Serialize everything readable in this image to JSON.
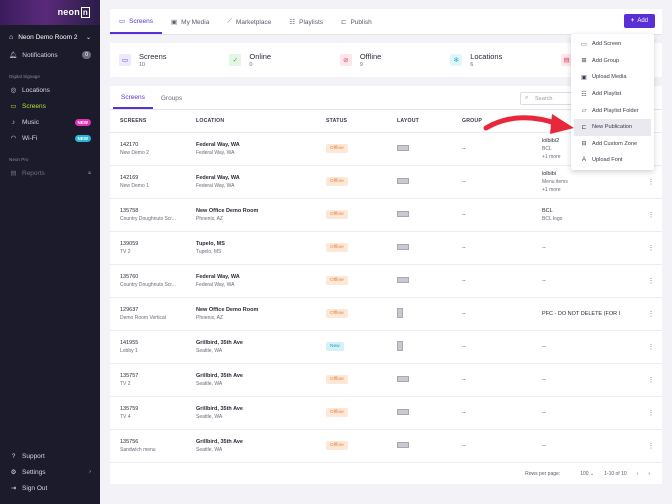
{
  "sidebar": {
    "logo": "neon",
    "logo_box": "n",
    "account": "Neon Demo Room 2",
    "notifications": {
      "label": "Notifications",
      "count": "0"
    },
    "section_signage": "Digital Signage",
    "items": [
      {
        "label": "Locations",
        "icon": "pin-icon",
        "active": false
      },
      {
        "label": "Screens",
        "icon": "monitor-icon",
        "active": true
      },
      {
        "label": "Music",
        "icon": "music-icon",
        "badge": "NEW"
      },
      {
        "label": "Wi-Fi",
        "icon": "wifi-icon",
        "badge": "NEW"
      }
    ],
    "section_pro": "Neon Pro",
    "reports": "Reports",
    "bottom": [
      {
        "label": "Support"
      },
      {
        "label": "Settings"
      },
      {
        "label": "Sign Out"
      }
    ]
  },
  "tabs": [
    {
      "label": "Screens",
      "active": true
    },
    {
      "label": "My Media"
    },
    {
      "label": "Marketplace"
    },
    {
      "label": "Playlists"
    },
    {
      "label": "Publish"
    }
  ],
  "add_button": "Add",
  "stats": [
    {
      "name": "Screens",
      "num": "10",
      "color": "#5b2fd6",
      "bg": "#efe9fc"
    },
    {
      "name": "Online",
      "num": "0",
      "color": "#34b54a",
      "bg": "#e5f6e6"
    },
    {
      "name": "Offline",
      "num": "9",
      "color": "#e23b5a",
      "bg": "#fce6ea"
    },
    {
      "name": "Locations",
      "num": "6",
      "color": "#25b6d9",
      "bg": "#e2f5fb"
    },
    {
      "name": "",
      "num": "",
      "color": "#e23b5a",
      "bg": "#fce6ea"
    }
  ],
  "subtabs": [
    "Screens",
    "Groups"
  ],
  "search_placeholder": "Search",
  "columns": [
    "SCREENS",
    "LOCATION",
    "STATUS",
    "LAYOUT",
    "GROUP",
    ""
  ],
  "rows": [
    {
      "id": "142170",
      "name": "New Demo 2",
      "loc": "Federal Way, WA",
      "city": "Federal Way, WA",
      "status": "Offline",
      "layout": "landscape",
      "group": "--",
      "playlist": [
        "lolbibi2",
        "BCL"
      ],
      "more": "+1 more"
    },
    {
      "id": "142169",
      "name": "New Demo 1",
      "loc": "Federal Way, WA",
      "city": "Federal Way, WA",
      "status": "Offline",
      "layout": "landscape",
      "group": "--",
      "playlist": [
        "lolbibi",
        "Menu items"
      ],
      "more": "+1 more"
    },
    {
      "id": "135758",
      "name": "Country Doughnuts Scr...",
      "loc": "New Office Demo Room",
      "city": "Phoenix, AZ",
      "status": "Offline",
      "layout": "landscape",
      "group": "--",
      "playlist": [
        "BCL",
        "BCL logo"
      ],
      "more": ""
    },
    {
      "id": "139059",
      "name": "TV 2",
      "loc": "Tupelo, MS",
      "city": "Tupelo, MS",
      "status": "Offline",
      "layout": "landscape",
      "group": "--",
      "playlist": [
        "--"
      ],
      "more": ""
    },
    {
      "id": "135760",
      "name": "Country Doughnuts Scr...",
      "loc": "Federal Way, WA",
      "city": "Federal Way, WA",
      "status": "Offline",
      "layout": "landscape",
      "group": "--",
      "playlist": [
        "--"
      ],
      "more": ""
    },
    {
      "id": "129637",
      "name": "Demo Room Vertical",
      "loc": "New Office Demo Room",
      "city": "Phoenix, AZ",
      "status": "Offline",
      "layout": "portrait",
      "group": "--",
      "playlist": [
        "PFC - DO NOT DELETE (FOR I"
      ],
      "more": ""
    },
    {
      "id": "141955",
      "name": "Lobby 1",
      "loc": "Grillbird, 35th Ave",
      "city": "Seattle, WA",
      "status": "New",
      "layout": "portrait",
      "group": "--",
      "playlist": [
        "--"
      ],
      "more": ""
    },
    {
      "id": "135757",
      "name": "TV 2",
      "loc": "Grillbird, 35th Ave",
      "city": "Seattle, WA",
      "status": "Offline",
      "layout": "landscape",
      "group": "--",
      "playlist": [
        "--"
      ],
      "more": ""
    },
    {
      "id": "135759",
      "name": "TV 4",
      "loc": "Grillbird, 35th Ave",
      "city": "Seattle, WA",
      "status": "Offline",
      "layout": "landscape",
      "group": "--",
      "playlist": [
        "--"
      ],
      "more": ""
    },
    {
      "id": "135756",
      "name": "Sandwich menu",
      "loc": "Grillbird, 35th Ave",
      "city": "Seattle, WA",
      "status": "Offline",
      "layout": "landscape",
      "group": "--",
      "playlist": [
        "--"
      ],
      "more": ""
    }
  ],
  "pager": {
    "rows_label": "Rows per page:",
    "rows_value": "100",
    "range": "1-10 of 10"
  },
  "menu": [
    {
      "label": "Add Screen",
      "icon": "monitor-icon"
    },
    {
      "label": "Add Group",
      "icon": "grid-icon"
    },
    {
      "label": "Upload Media",
      "icon": "image-icon"
    },
    {
      "label": "Add Playlist",
      "icon": "playlist-icon"
    },
    {
      "label": "Add Playlist Folder",
      "icon": "folder-icon"
    },
    {
      "label": "New Publication",
      "icon": "publish-icon",
      "highlight": true
    },
    {
      "label": "Add Custom Zone",
      "icon": "zone-icon"
    },
    {
      "label": "Upload Font",
      "icon": "font-icon"
    }
  ],
  "arrow_color": "#e8283a"
}
